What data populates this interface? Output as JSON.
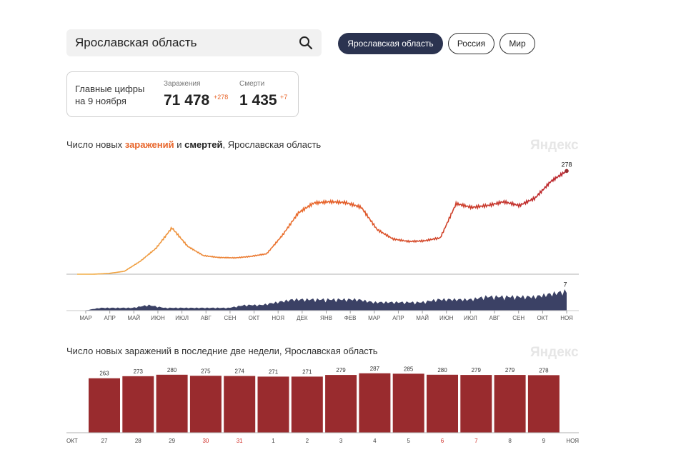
{
  "search": {
    "value": "Ярославская область"
  },
  "regions": [
    {
      "label": "Ярославская область",
      "active": true
    },
    {
      "label": "Россия",
      "active": false
    },
    {
      "label": "Мир",
      "active": false
    }
  ],
  "stats": {
    "title_line1": "Главные цифры",
    "title_line2": "на 9 ноября",
    "infections": {
      "label": "Заражения",
      "value": "71 478",
      "delta": "+278"
    },
    "deaths": {
      "label": "Смерти",
      "value": "1 435",
      "delta": "+7"
    }
  },
  "chart1_title": {
    "part1": "Число новых ",
    "part2": "заражений",
    "part3": " и ",
    "part4": "смертей",
    "part5": ", Ярославская область"
  },
  "chart2_title": "Число новых заражений в последние две недели, Ярославская область",
  "watermark": "Яндекс",
  "colors": {
    "accent_orange": "#e8652a",
    "bar_red": "#992b2e",
    "death_blue": "#3b4165",
    "pill_dark": "#2b3350",
    "weekend_red": "#d0302a"
  },
  "chart_data": [
    {
      "type": "line",
      "title": "Число новых заражений и смертей, Ярославская область",
      "x_ticks": [
        "МАР",
        "АПР",
        "МАЙ",
        "ИЮН",
        "ИЮЛ",
        "АВГ",
        "СЕН",
        "ОКТ",
        "НОЯ",
        "ДЕК",
        "ЯНВ",
        "ФЕВ",
        "МАР",
        "АПР",
        "МАЙ",
        "ИЮН",
        "ИЮЛ",
        "АВГ",
        "СЕН",
        "ОКТ",
        "НОЯ"
      ],
      "series": [
        {
          "name": "заражения",
          "last_label": "278",
          "ylim": [
            0,
            300
          ],
          "values": [
            0,
            0,
            2,
            8,
            35,
            70,
            125,
            75,
            50,
            45,
            44,
            48,
            55,
            105,
            165,
            192,
            195,
            193,
            180,
            120,
            95,
            88,
            90,
            98,
            190,
            180,
            185,
            195,
            185,
            205,
            250,
            278
          ]
        },
        {
          "name": "смерти",
          "last_label": "7",
          "ylim": [
            0,
            8
          ],
          "values": [
            0,
            0,
            1,
            1,
            1,
            2,
            1,
            1,
            1,
            1,
            1,
            2,
            2,
            3,
            4,
            4,
            4,
            4,
            4,
            3,
            3,
            3,
            3,
            4,
            4,
            4,
            5,
            5,
            5,
            5,
            6,
            7
          ]
        }
      ]
    },
    {
      "type": "bar",
      "title": "Число новых заражений в последние две недели, Ярославская область",
      "categories": [
        "27",
        "28",
        "29",
        "30",
        "31",
        "1",
        "2",
        "3",
        "4",
        "5",
        "6",
        "7",
        "8",
        "9"
      ],
      "values": [
        263,
        273,
        280,
        275,
        274,
        271,
        271,
        279,
        287,
        285,
        280,
        279,
        279,
        278
      ],
      "weekend": [
        false,
        false,
        false,
        true,
        true,
        false,
        false,
        false,
        false,
        false,
        true,
        true,
        false,
        false
      ],
      "month_start": "ОКТ",
      "month_end": "НОЯ",
      "ylim": [
        0,
        300
      ]
    }
  ]
}
